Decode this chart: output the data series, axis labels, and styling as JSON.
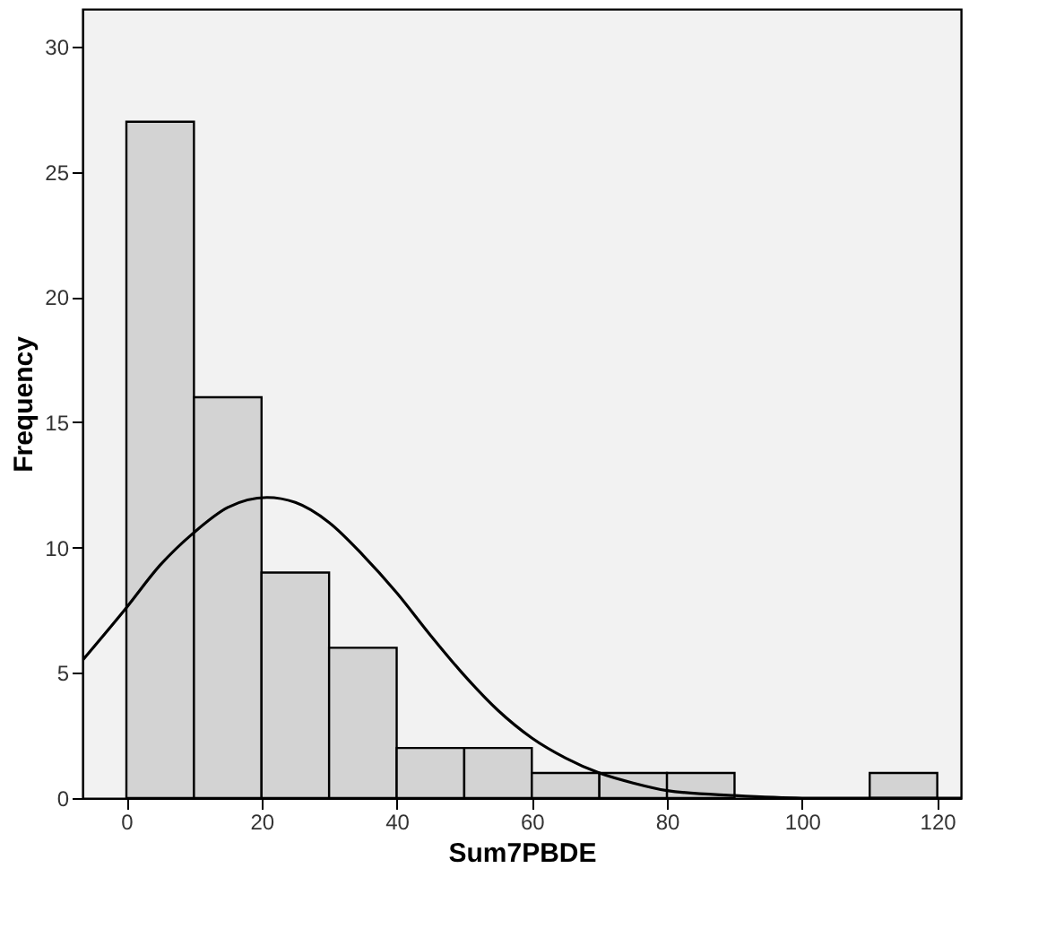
{
  "chart_data": {
    "type": "histogram",
    "xlabel": "Sum7PBDE",
    "ylabel": "Frequency",
    "bins": [
      0,
      10,
      20,
      30,
      40,
      50,
      60,
      70,
      80,
      90,
      100,
      110,
      120
    ],
    "values": [
      27,
      16,
      9,
      6,
      2,
      2,
      1,
      1,
      1,
      0,
      0,
      1
    ],
    "color": "#d3d3d3",
    "series": [
      {
        "type": "line",
        "color": "#000000",
        "x": [
          -6.5,
          0,
          5,
          10,
          15,
          20.8,
          25,
          30,
          35,
          40,
          45,
          50,
          55,
          60,
          65,
          70,
          75,
          80,
          90,
          100,
          110,
          123.5
        ],
        "values": [
          5.5,
          7.6,
          9.3,
          10.6,
          11.6,
          12.0,
          11.8,
          11.0,
          9.7,
          8.2,
          6.5,
          4.9,
          3.5,
          2.4,
          1.6,
          1.0,
          0.6,
          0.3,
          0.1,
          0.0,
          0.0,
          0.0
        ]
      }
    ],
    "xlim": [
      -6.5,
      123.5
    ],
    "ylim": [
      0,
      31.5
    ],
    "xticks": [
      0,
      20,
      40,
      60,
      80,
      100,
      120
    ],
    "yticks": [
      0,
      5,
      10,
      15,
      20,
      25,
      30
    ],
    "grid": false,
    "line_style": "solid",
    "marker": "none"
  }
}
